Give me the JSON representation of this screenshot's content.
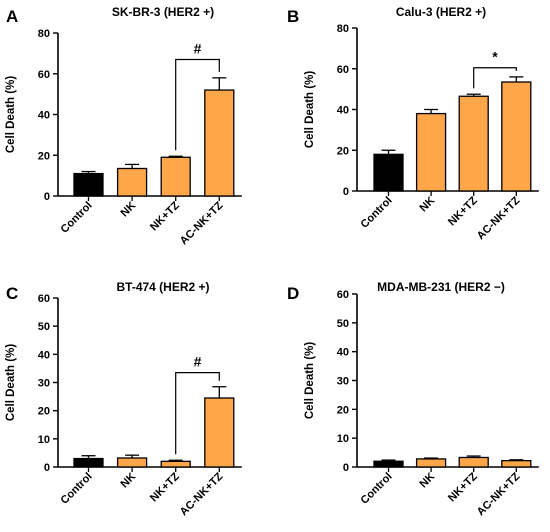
{
  "colors": {
    "control": "#000000",
    "treated": "#FFA54A",
    "axis": "#000000"
  },
  "chart_data": [
    {
      "type": "bar",
      "panel": "A",
      "title": "SK-BR-3 (HER2 +)",
      "ylabel": "Cell Death (%)",
      "xlabel": "",
      "categories": [
        "Control",
        "NK",
        "NK+TZ",
        "AC-NK+TZ"
      ],
      "values": [
        11,
        13.5,
        19,
        52
      ],
      "errors": [
        1,
        2,
        0.5,
        6
      ],
      "ylim": [
        0,
        80
      ],
      "yticks": [
        0,
        20,
        40,
        60,
        80
      ],
      "bar_colors": [
        "#000000",
        "#FFA54A",
        "#FFA54A",
        "#FFA54A"
      ],
      "significance": {
        "from": 2,
        "to": 3,
        "label": "#",
        "level": 67
      }
    },
    {
      "type": "bar",
      "panel": "B",
      "title": "Calu-3 (HER2 +)",
      "ylabel": "Cell Death (%)",
      "xlabel": "",
      "categories": [
        "Control",
        "NK",
        "NK+TZ",
        "AC-NK+TZ"
      ],
      "values": [
        18,
        38,
        46.5,
        53.5
      ],
      "errors": [
        2,
        2,
        1,
        2.5
      ],
      "ylim": [
        0,
        80
      ],
      "yticks": [
        0,
        20,
        40,
        60,
        80
      ],
      "bar_colors": [
        "#000000",
        "#FFA54A",
        "#FFA54A",
        "#FFA54A"
      ],
      "significance": {
        "from": 2,
        "to": 3,
        "label": "*",
        "level": 60.5
      }
    },
    {
      "type": "bar",
      "panel": "C",
      "title": "BT-474 (HER2 +)",
      "ylabel": "Cell Death (%)",
      "xlabel": "",
      "categories": [
        "Control",
        "NK",
        "NK+TZ",
        "AC-NK+TZ"
      ],
      "values": [
        3,
        3.2,
        2,
        24.5
      ],
      "errors": [
        1,
        1,
        0.4,
        4
      ],
      "ylim": [
        0,
        60
      ],
      "yticks": [
        0,
        10,
        20,
        30,
        40,
        50,
        60
      ],
      "bar_colors": [
        "#000000",
        "#FFA54A",
        "#FFA54A",
        "#FFA54A"
      ],
      "significance": {
        "from": 2,
        "to": 3,
        "label": "#",
        "level": 33.5
      }
    },
    {
      "type": "bar",
      "panel": "D",
      "title": "MDA-MB-231 (HER2 −)",
      "ylabel": "Cell Death (%)",
      "xlabel": "",
      "categories": [
        "Control",
        "NK",
        "NK+TZ",
        "AC-NK+TZ"
      ],
      "values": [
        2,
        2.8,
        3.3,
        2.2
      ],
      "errors": [
        0.4,
        0.3,
        0.5,
        0.3
      ],
      "ylim": [
        0,
        60
      ],
      "yticks": [
        0,
        10,
        20,
        30,
        40,
        50,
        60
      ],
      "bar_colors": [
        "#000000",
        "#FFA54A",
        "#FFA54A",
        "#FFA54A"
      ],
      "significance": null
    }
  ]
}
